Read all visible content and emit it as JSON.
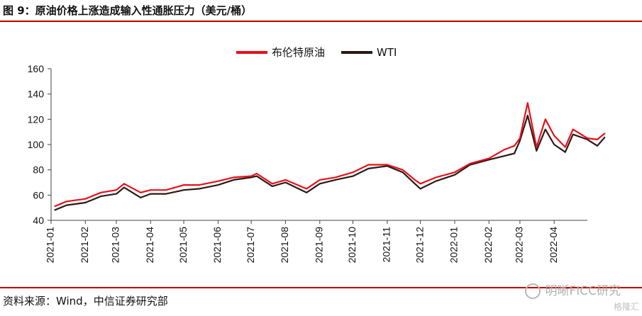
{
  "figure_title": "图 9：原油价格上涨造成输入性通胀压力（美元/桶）",
  "source": "资料来源：Wind，中信证券研究部",
  "watermark": "明晰FICC研究",
  "watermark_sub": "格隆汇",
  "colors": {
    "brent": "#e8101a",
    "wti": "#2b1a17",
    "rule": "#c00000"
  },
  "chart_data": {
    "type": "line",
    "title": "",
    "xlabel": "",
    "ylabel": "",
    "ylim": [
      40,
      160
    ],
    "yticks": [
      40,
      60,
      80,
      100,
      120,
      140,
      160
    ],
    "xlim": [
      "2021-01",
      "2022-05"
    ],
    "xticks": [
      "2021-01",
      "2021-02",
      "2021-03",
      "2021-04",
      "2021-05",
      "2021-06",
      "2021-07",
      "2021-08",
      "2021-09",
      "2021-10",
      "2021-11",
      "2021-12",
      "2022-01",
      "2022-02",
      "2022-03",
      "2022-04"
    ],
    "grid": false,
    "legend": "top-center",
    "x": [
      "2021-01-04",
      "2021-01-15",
      "2021-02-01",
      "2021-02-15",
      "2021-03-01",
      "2021-03-08",
      "2021-03-23",
      "2021-04-01",
      "2021-04-15",
      "2021-05-01",
      "2021-05-15",
      "2021-06-01",
      "2021-06-15",
      "2021-07-01",
      "2021-07-06",
      "2021-07-20",
      "2021-08-01",
      "2021-08-20",
      "2021-09-01",
      "2021-09-15",
      "2021-10-01",
      "2021-10-15",
      "2021-11-01",
      "2021-11-15",
      "2021-11-26",
      "2021-12-01",
      "2021-12-15",
      "2022-01-01",
      "2022-01-15",
      "2022-02-01",
      "2022-02-15",
      "2022-02-24",
      "2022-03-01",
      "2022-03-08",
      "2022-03-16",
      "2022-03-24",
      "2022-04-01",
      "2022-04-11",
      "2022-04-18",
      "2022-05-01",
      "2022-05-10",
      "2022-05-17"
    ],
    "series": [
      {
        "name": "布伦特原油",
        "values": [
          51,
          55,
          57,
          62,
          64,
          69,
          62,
          64,
          64,
          68,
          68,
          71,
          74,
          75,
          77,
          69,
          72,
          65,
          72,
          74,
          78,
          84,
          84,
          80,
          72,
          69,
          74,
          78,
          85,
          89,
          96,
          99,
          105,
          133,
          98,
          120,
          107,
          98,
          112,
          105,
          104,
          109
        ]
      },
      {
        "name": "WTI",
        "values": [
          48,
          52,
          54,
          59,
          61,
          66,
          58,
          61,
          61,
          64,
          65,
          68,
          72,
          74,
          75,
          67,
          70,
          62,
          69,
          72,
          75,
          81,
          83,
          78,
          69,
          65,
          71,
          76,
          84,
          88,
          91,
          93,
          103,
          123,
          95,
          112,
          100,
          94,
          108,
          104,
          99,
          106
        ]
      }
    ]
  }
}
